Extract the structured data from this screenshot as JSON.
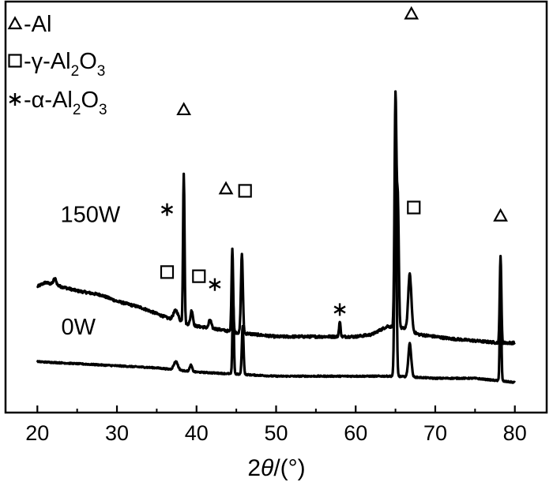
{
  "chart_data": {
    "type": "line",
    "title": "",
    "xlabel": "2θ/(°)",
    "xlabel_parts": {
      "prefix": "2",
      "italic": "θ",
      "suffix": "/(°)"
    },
    "ylabel": "",
    "xlim": [
      16,
      84
    ],
    "xticks": [
      20,
      30,
      40,
      50,
      60,
      70,
      80
    ],
    "xtick_labels": [
      "20",
      "30",
      "40",
      "50",
      "60",
      "70",
      "80"
    ],
    "grid": false,
    "legend_position": "top-left",
    "legend": [
      {
        "marker": "triangle",
        "prefix": "-",
        "parts": [
          {
            "t": "Al",
            "sub": false
          }
        ]
      },
      {
        "marker": "square",
        "prefix": "-γ-",
        "parts": [
          {
            "t": "Al",
            "sub": false
          },
          {
            "t": "2",
            "sub": true
          },
          {
            "t": "O",
            "sub": false
          },
          {
            "t": "3",
            "sub": true
          }
        ]
      },
      {
        "marker": "asterisk",
        "prefix": "-α-",
        "parts": [
          {
            "t": "Al",
            "sub": false
          },
          {
            "t": "2",
            "sub": true
          },
          {
            "t": "O",
            "sub": false
          },
          {
            "t": "3",
            "sub": true
          }
        ]
      }
    ],
    "series": [
      {
        "name": "150W",
        "baseline": [
          [
            20,
            0.51
          ],
          [
            21,
            0.53
          ],
          [
            22,
            0.52
          ],
          [
            23,
            0.51
          ],
          [
            25,
            0.49
          ],
          [
            28,
            0.47
          ],
          [
            30,
            0.44
          ],
          [
            33,
            0.41
          ],
          [
            35,
            0.38
          ],
          [
            37,
            0.35
          ],
          [
            38,
            0.34
          ],
          [
            40,
            0.32
          ],
          [
            42,
            0.31
          ],
          [
            45,
            0.29
          ],
          [
            50,
            0.27
          ],
          [
            55,
            0.27
          ],
          [
            58,
            0.27
          ],
          [
            60,
            0.27
          ],
          [
            62,
            0.28
          ],
          [
            63,
            0.3
          ],
          [
            64,
            0.32
          ],
          [
            66,
            0.31
          ],
          [
            68,
            0.28
          ],
          [
            70,
            0.27
          ],
          [
            72,
            0.26
          ],
          [
            75,
            0.25
          ],
          [
            78,
            0.24
          ],
          [
            80,
            0.24
          ]
        ],
        "peaks": [
          {
            "x": 22.2,
            "h": 0.03,
            "w": 0.18
          },
          {
            "x": 37.4,
            "h": 0.05,
            "w": 0.3
          },
          {
            "x": 38.4,
            "h": 0.72,
            "w": 0.09
          },
          {
            "x": 39.4,
            "h": 0.07,
            "w": 0.15
          },
          {
            "x": 41.7,
            "h": 0.04,
            "w": 0.15
          },
          {
            "x": 44.5,
            "h": 0.4,
            "w": 0.1
          },
          {
            "x": 45.7,
            "h": 0.38,
            "w": 0.12
          },
          {
            "x": 58.0,
            "h": 0.07,
            "w": 0.1
          },
          {
            "x": 65.0,
            "h": 1.1,
            "w": 0.12
          },
          {
            "x": 65.3,
            "h": 0.6,
            "w": 0.12
          },
          {
            "x": 66.8,
            "h": 0.27,
            "w": 0.2
          },
          {
            "x": 78.2,
            "h": 0.42,
            "w": 0.1
          }
        ]
      },
      {
        "name": "0W",
        "baseline": [
          [
            20,
            0.15
          ],
          [
            25,
            0.14
          ],
          [
            30,
            0.13
          ],
          [
            35,
            0.12
          ],
          [
            40,
            0.1
          ],
          [
            45,
            0.09
          ],
          [
            50,
            0.08
          ],
          [
            55,
            0.08
          ],
          [
            60,
            0.08
          ],
          [
            65,
            0.08
          ],
          [
            70,
            0.07
          ],
          [
            75,
            0.07
          ],
          [
            80,
            0.05
          ]
        ],
        "peaks": [
          {
            "x": 37.4,
            "h": 0.04,
            "w": 0.25
          },
          {
            "x": 39.3,
            "h": 0.03,
            "w": 0.15
          },
          {
            "x": 44.6,
            "h": 0.36,
            "w": 0.09
          },
          {
            "x": 45.8,
            "h": 0.23,
            "w": 0.11
          },
          {
            "x": 65.0,
            "h": 1.1,
            "w": 0.12
          },
          {
            "x": 66.8,
            "h": 0.16,
            "w": 0.18
          },
          {
            "x": 78.2,
            "h": 0.53,
            "w": 0.09
          }
        ]
      }
    ],
    "annotations": [
      {
        "type": "triangle",
        "x": 38.4,
        "y": 1.36
      },
      {
        "type": "triangle",
        "x": 67.0,
        "y": 1.82
      },
      {
        "type": "triangle",
        "x": 43.7,
        "y": 0.98
      },
      {
        "type": "triangle",
        "x": 78.2,
        "y": 0.85
      },
      {
        "type": "square",
        "x": 36.3,
        "y": 0.58
      },
      {
        "type": "square",
        "x": 40.3,
        "y": 0.56
      },
      {
        "type": "square",
        "x": 46.1,
        "y": 0.97
      },
      {
        "type": "square",
        "x": 67.3,
        "y": 0.89
      },
      {
        "type": "asterisk",
        "x": 36.3,
        "y": 0.88
      },
      {
        "type": "asterisk",
        "x": 42.3,
        "y": 0.52
      },
      {
        "type": "asterisk",
        "x": 58.0,
        "y": 0.4
      }
    ],
    "sample_labels": [
      {
        "text": "150W",
        "x": 22.9,
        "y": 0.82
      },
      {
        "text": "0W",
        "x": 23.0,
        "y": 0.28
      }
    ]
  }
}
